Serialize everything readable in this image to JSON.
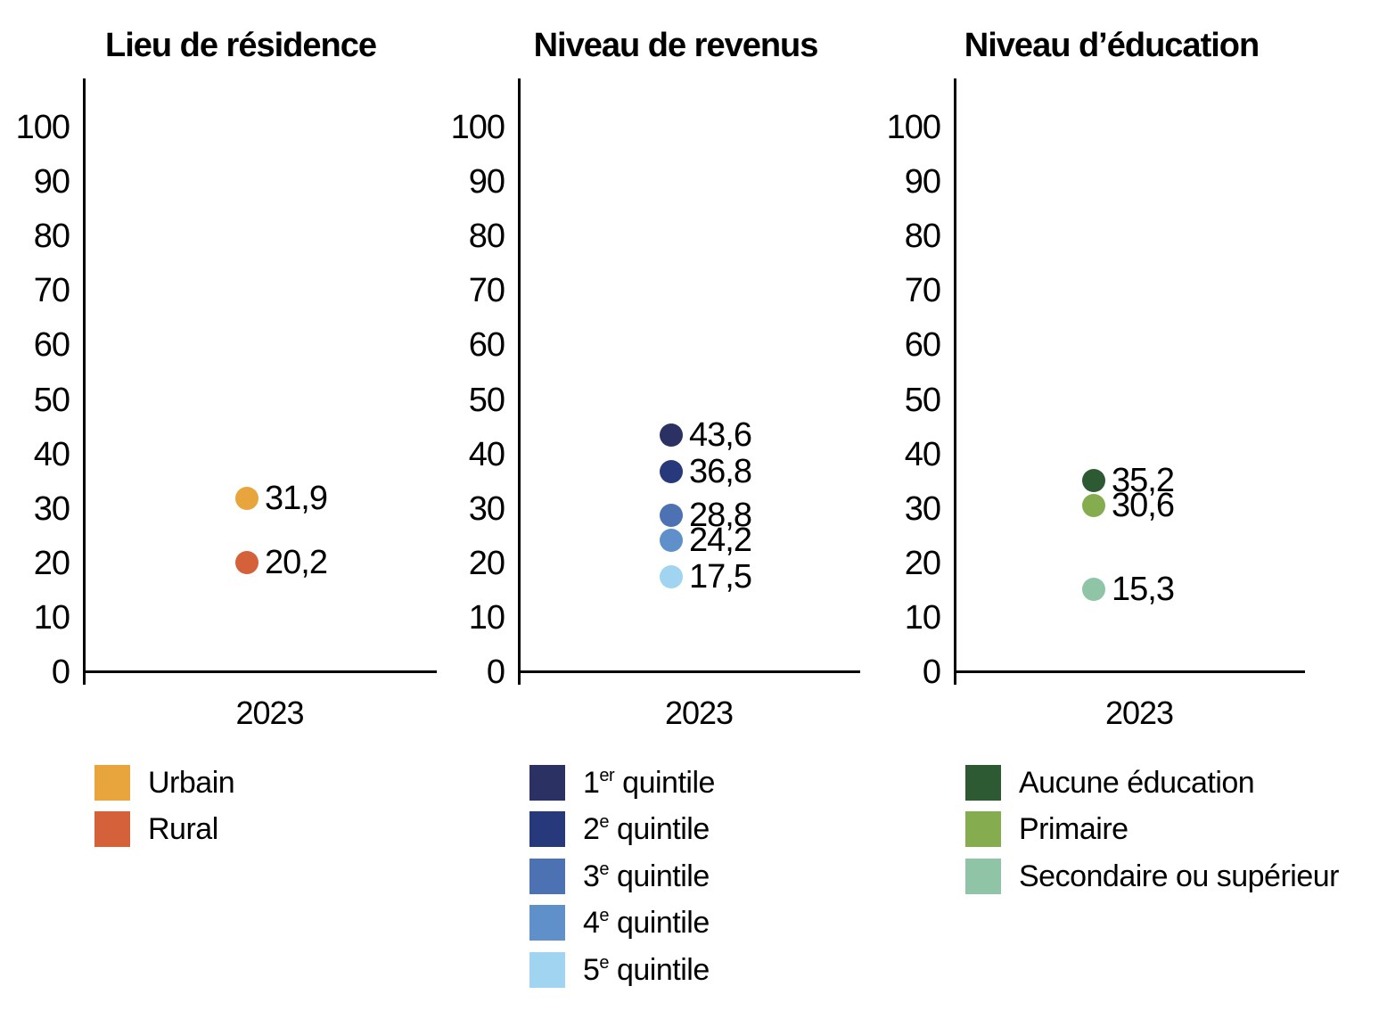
{
  "background": "#FFFFFF",
  "axis_color": "#000000",
  "chart_data": [
    {
      "type": "scatter",
      "title": "Lieu de résidence",
      "x_label": "2023",
      "x_categories": [
        "2023"
      ],
      "ylim": [
        0,
        100
      ],
      "ytick_step": 10,
      "grid": false,
      "legend_position": "bottom-left",
      "series": [
        {
          "name_pre": "Urbain",
          "name_sup": "",
          "name_post": "",
          "value": 31.9,
          "value_label": "31,9",
          "color": "#E8A53E"
        },
        {
          "name_pre": "Rural",
          "name_sup": "",
          "name_post": "",
          "value": 20.2,
          "value_label": "20,2",
          "color": "#D4613A"
        }
      ]
    },
    {
      "type": "scatter",
      "title": "Niveau de revenus",
      "x_label": "2023",
      "x_categories": [
        "2023"
      ],
      "ylim": [
        0,
        100
      ],
      "ytick_step": 10,
      "grid": false,
      "legend_position": "bottom-left",
      "series": [
        {
          "name_pre": "1",
          "name_sup": "er",
          "name_post": " quintile",
          "value": 43.6,
          "value_label": "43,6",
          "color": "#2B3162"
        },
        {
          "name_pre": "2",
          "name_sup": "e",
          "name_post": " quintile",
          "value": 36.8,
          "value_label": "36,8",
          "color": "#28397B"
        },
        {
          "name_pre": "3",
          "name_sup": "e",
          "name_post": " quintile",
          "value": 28.8,
          "value_label": "28,8",
          "color": "#4C72B4"
        },
        {
          "name_pre": "4",
          "name_sup": "e",
          "name_post": " quintile",
          "value": 24.2,
          "value_label": "24,2",
          "color": "#5F90CA"
        },
        {
          "name_pre": "5",
          "name_sup": "e",
          "name_post": " quintile",
          "value": 17.5,
          "value_label": "17,5",
          "color": "#A0D4F1"
        }
      ]
    },
    {
      "type": "scatter",
      "title": "Niveau d’éducation",
      "x_label": "2023",
      "x_categories": [
        "2023"
      ],
      "ylim": [
        0,
        100
      ],
      "ytick_step": 10,
      "grid": false,
      "legend_position": "bottom-left",
      "series": [
        {
          "name_pre": "Aucune éducation",
          "name_sup": "",
          "name_post": "",
          "value": 35.2,
          "value_label": "35,2",
          "color": "#2D5A33"
        },
        {
          "name_pre": "Primaire",
          "name_sup": "",
          "name_post": "",
          "value": 30.6,
          "value_label": "30,6",
          "color": "#85AC4E"
        },
        {
          "name_pre": "Secondaire ou supérieur",
          "name_sup": "",
          "name_post": "",
          "value": 15.3,
          "value_label": "15,3",
          "color": "#8FC4A6"
        }
      ]
    }
  ]
}
